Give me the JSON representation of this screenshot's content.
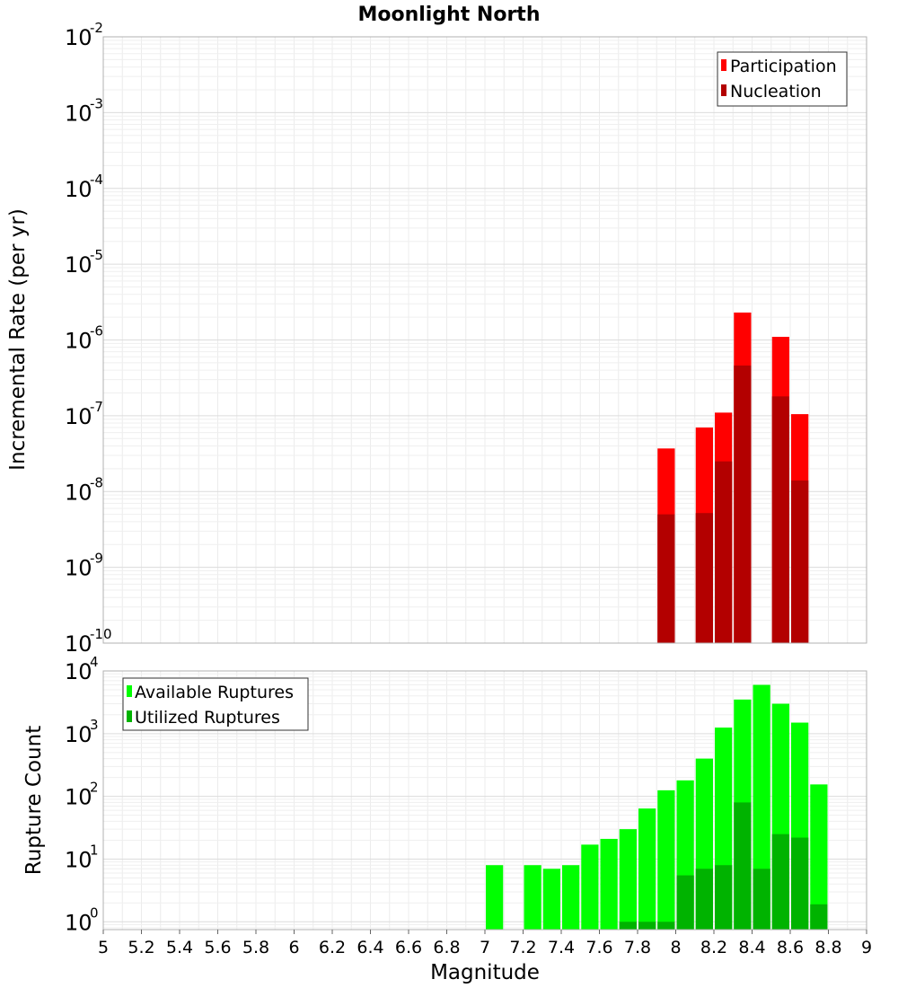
{
  "chart_data": [
    {
      "type": "bar",
      "title": "Moonlight North",
      "xlabel": "",
      "ylabel": "Incremental Rate (per yr)",
      "yscale": "log",
      "ylim": [
        1e-10,
        0.01
      ],
      "xlim": [
        5,
        9
      ],
      "grid": true,
      "legend_position": "top-right",
      "y_tick_exponents": [
        "-10",
        "-9",
        "-8",
        "-7",
        "-6",
        "-5",
        "-4",
        "-3",
        "-2"
      ],
      "y_tick_base": "10",
      "series": [
        {
          "name": "Participation",
          "color": "#ff0000",
          "x": [
            7.95,
            8.15,
            8.25,
            8.35,
            8.55,
            8.65
          ],
          "values": [
            3.7e-08,
            7e-08,
            1.1e-07,
            2.3e-06,
            1.1e-06,
            1.05e-07
          ]
        },
        {
          "name": "Nucleation",
          "color": "#b30000",
          "x": [
            7.95,
            8.15,
            8.25,
            8.35,
            8.55,
            8.65
          ],
          "values": [
            5e-09,
            5.2e-09,
            2.5e-08,
            4.6e-07,
            1.8e-07,
            1.4e-08
          ]
        }
      ]
    },
    {
      "type": "bar",
      "title": "",
      "xlabel": "Magnitude",
      "ylabel": "Rupture Count",
      "yscale": "log",
      "ylim": [
        0.75,
        10000
      ],
      "xlim": [
        5,
        9
      ],
      "grid": true,
      "legend_position": "top-left",
      "y_tick_exponents": [
        "0",
        "1",
        "2",
        "3",
        "4"
      ],
      "y_tick_base": "10",
      "x_ticks": [
        "5",
        "5.2",
        "5.4",
        "5.6",
        "5.8",
        "6",
        "6.2",
        "6.4",
        "6.6",
        "6.8",
        "7",
        "7.2",
        "7.4",
        "7.6",
        "7.8",
        "8",
        "8.2",
        "8.4",
        "8.6",
        "8.8",
        "9"
      ],
      "series": [
        {
          "name": "Available Ruptures",
          "color": "#00ff00",
          "x": [
            7.05,
            7.25,
            7.35,
            7.45,
            7.55,
            7.65,
            7.75,
            7.85,
            7.95,
            8.05,
            8.15,
            8.25,
            8.35,
            8.45,
            8.55,
            8.65,
            8.75
          ],
          "values": [
            8,
            8,
            7,
            8,
            17,
            21,
            30,
            64,
            125,
            180,
            400,
            1250,
            3500,
            6000,
            3000,
            1500,
            155
          ]
        },
        {
          "name": "Utilized Ruptures",
          "color": "#00b300",
          "x": [
            7.75,
            7.85,
            7.95,
            8.05,
            8.15,
            8.25,
            8.35,
            8.45,
            8.55,
            8.65,
            8.75
          ],
          "values": [
            1,
            1,
            1,
            5.5,
            7,
            8,
            80,
            7,
            25,
            22,
            1.9
          ]
        }
      ]
    }
  ]
}
